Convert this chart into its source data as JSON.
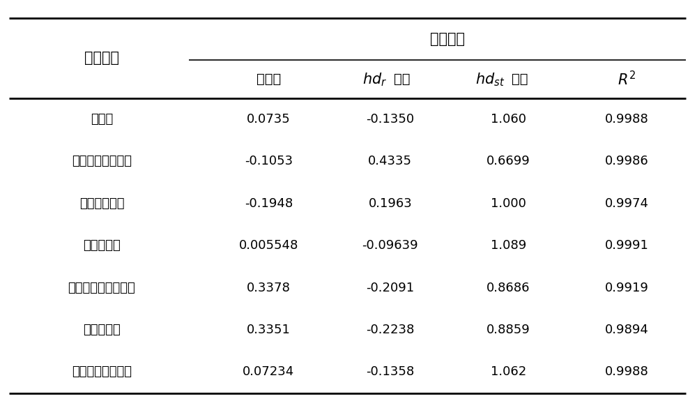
{
  "title_col1": "故障情形",
  "title_group": "拟合函数",
  "rows": [
    {
      "label": "无故障",
      "vals": [
        "0.0735",
        "-0.1350",
        "1.060",
        "0.9988"
      ]
    },
    {
      "label": "电堆阳极入口漏气",
      "vals": [
        "-0.1053",
        "0.4335",
        "0.6699",
        "0.9986"
      ]
    },
    {
      "label": "电池轻度破裂",
      "vals": [
        "-0.1948",
        "0.1963",
        "1.000",
        "0.9974"
      ]
    },
    {
      "label": "重整器积碳",
      "vals": [
        "0.005548",
        "-0.09639",
        "1.089",
        "0.9991"
      ]
    },
    {
      "label": "换热器烟气入口漏气",
      "vals": [
        "0.3378",
        "-0.2091",
        "0.8686",
        "0.9919"
      ]
    },
    {
      "label": "燃烧室漏气",
      "vals": [
        "0.3351",
        "-0.2238",
        "0.8859",
        "0.9894"
      ]
    },
    {
      "label": "风机机械性能下降",
      "vals": [
        "0.07234",
        "-0.1358",
        "1.062",
        "0.9988"
      ]
    }
  ],
  "bg_color": "#ffffff",
  "text_color": "#000000",
  "line_color": "#000000",
  "fig_width": 10.0,
  "fig_height": 5.75,
  "dpi": 100
}
